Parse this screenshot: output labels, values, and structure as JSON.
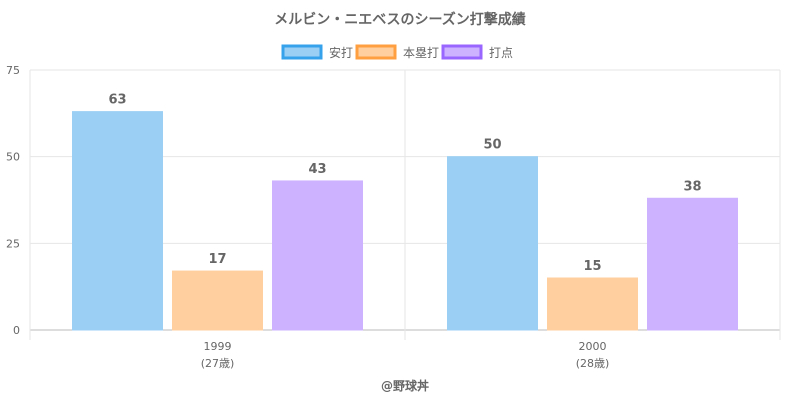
{
  "chart_data": {
    "type": "bar",
    "title": "メルビン・ニエベスのシーズン打撃成績",
    "categories": [
      "1999",
      "2000"
    ],
    "category_sublabels": [
      "(27歳)",
      "(28歳)"
    ],
    "series": [
      {
        "name": "安打",
        "values": [
          63,
          50
        ],
        "fill": "#9ccff4",
        "stroke": "#36a2eb"
      },
      {
        "name": "本塁打",
        "values": [
          17,
          15
        ],
        "fill": "#ffcf9f",
        "stroke": "#ff9f40"
      },
      {
        "name": "打点",
        "values": [
          43,
          38
        ],
        "fill": "#cdb3ff",
        "stroke": "#9966ff"
      }
    ],
    "yticks": [
      0,
      25,
      50,
      75
    ],
    "ylim": [
      0,
      75
    ],
    "grid": true,
    "legend": "top-center",
    "credit": "@野球丼"
  }
}
